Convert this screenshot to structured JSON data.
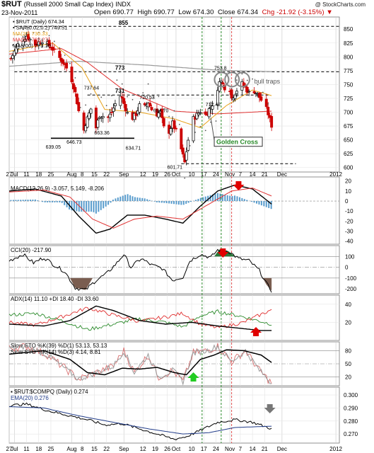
{
  "header": {
    "symbol": "$RUT",
    "name": "(Russell 2000 Small Cap Index)",
    "exchange": "INDX",
    "copyright": "@ StockCharts.com",
    "date": "23-Nov-2011",
    "open": "Open 690.77",
    "high": "High 690.77",
    "low": "Low 674.30",
    "close": "Close 674.34",
    "chg": "Chg -21.92 (-3.15%)"
  },
  "x_axis": {
    "ticks": [
      {
        "label": "27",
        "d": 0
      },
      {
        "label": "Jul",
        "d": 3,
        "month": true
      },
      {
        "label": "11",
        "d": 10
      },
      {
        "label": "18",
        "d": 17
      },
      {
        "label": "25",
        "d": 24
      },
      {
        "label": "Aug",
        "d": 36,
        "month": true
      },
      {
        "label": "8",
        "d": 42
      },
      {
        "label": "15",
        "d": 49
      },
      {
        "label": "22",
        "d": 56
      },
      {
        "label": "Sep",
        "d": 66,
        "month": true
      },
      {
        "label": "12",
        "d": 77
      },
      {
        "label": "19",
        "d": 84
      },
      {
        "label": "26",
        "d": 91
      },
      {
        "label": "Oct",
        "d": 96,
        "month": true
      },
      {
        "label": "10",
        "d": 105
      },
      {
        "label": "17",
        "d": 112
      },
      {
        "label": "24",
        "d": 119
      },
      {
        "label": "Nov",
        "d": 127,
        "month": true
      },
      {
        "label": "7",
        "d": 133
      },
      {
        "label": "14",
        "d": 140
      },
      {
        "label": "21",
        "d": 147
      },
      {
        "label": "Dec",
        "d": 157,
        "month": true
      },
      {
        "label": "2012",
        "d": 188,
        "month": true
      }
    ],
    "day_range": [
      0,
      190
    ]
  },
  "chart_data": [
    {
      "type": "candlestick",
      "panel": "price",
      "legend": [
        {
          "name": "▪ $RUT (Daily) 674.34",
          "color": "#000000"
        },
        {
          "name": "▪ SAR(0.02,0.2) 749.51",
          "color": "#000000"
        },
        {
          "name": "MA(20) 730.33",
          "color": "#e8a21a"
        },
        {
          "name": "MA(50) 702.27",
          "color": "#e03030"
        },
        {
          "name": "MA(200) 773.10",
          "color": "#000000"
        }
      ],
      "y_ticks": [
        "850",
        "825",
        "800",
        "775",
        "750",
        "725",
        "700",
        "675",
        "650",
        "625",
        "600"
      ],
      "ylim": [
        592,
        872
      ],
      "annotations": [
        "855",
        "773",
        "731",
        "737.64",
        "720.53",
        "694.70",
        "712.42",
        "753.8",
        "639.05",
        "646.73",
        "663.36",
        "634.71",
        "601.71",
        "bull traps",
        "Golden Cross"
      ],
      "levels": [
        855,
        773,
        731,
        653,
        607
      ],
      "closes": [
        {
          "d": 1,
          "v": 797
        },
        {
          "d": 5,
          "v": 822
        },
        {
          "d": 10,
          "v": 838
        },
        {
          "d": 15,
          "v": 822
        },
        {
          "d": 19,
          "v": 830
        },
        {
          "d": 24,
          "v": 818
        },
        {
          "d": 28,
          "v": 802
        },
        {
          "d": 31,
          "v": 790
        },
        {
          "d": 35,
          "v": 770
        },
        {
          "d": 38,
          "v": 735
        },
        {
          "d": 40,
          "v": 702
        },
        {
          "d": 42,
          "v": 655
        },
        {
          "d": 44,
          "v": 680
        },
        {
          "d": 47,
          "v": 706
        },
        {
          "d": 50,
          "v": 672
        },
        {
          "d": 52,
          "v": 695
        },
        {
          "d": 54,
          "v": 693
        },
        {
          "d": 56,
          "v": 685
        },
        {
          "d": 59,
          "v": 700
        },
        {
          "d": 61,
          "v": 715
        },
        {
          "d": 63,
          "v": 735
        },
        {
          "d": 65,
          "v": 724
        },
        {
          "d": 68,
          "v": 698
        },
        {
          "d": 70,
          "v": 686
        },
        {
          "d": 73,
          "v": 697
        },
        {
          "d": 75,
          "v": 712
        },
        {
          "d": 77,
          "v": 705
        },
        {
          "d": 80,
          "v": 718
        },
        {
          "d": 82,
          "v": 705
        },
        {
          "d": 84,
          "v": 695
        },
        {
          "d": 87,
          "v": 700
        },
        {
          "d": 89,
          "v": 672
        },
        {
          "d": 91,
          "v": 658
        },
        {
          "d": 94,
          "v": 680
        },
        {
          "d": 96,
          "v": 665
        },
        {
          "d": 98,
          "v": 645
        },
        {
          "d": 101,
          "v": 609
        },
        {
          "d": 103,
          "v": 650
        },
        {
          "d": 105,
          "v": 685
        },
        {
          "d": 108,
          "v": 695
        },
        {
          "d": 110,
          "v": 702
        },
        {
          "d": 112,
          "v": 690
        },
        {
          "d": 115,
          "v": 705
        },
        {
          "d": 117,
          "v": 715
        },
        {
          "d": 119,
          "v": 712
        },
        {
          "d": 121,
          "v": 760
        },
        {
          "d": 124,
          "v": 745
        },
        {
          "d": 126,
          "v": 758
        },
        {
          "d": 128,
          "v": 725
        },
        {
          "d": 131,
          "v": 740
        },
        {
          "d": 133,
          "v": 755
        },
        {
          "d": 136,
          "v": 744
        },
        {
          "d": 138,
          "v": 735
        },
        {
          "d": 140,
          "v": 742
        },
        {
          "d": 143,
          "v": 732
        },
        {
          "d": 145,
          "v": 722
        },
        {
          "d": 147,
          "v": 714
        },
        {
          "d": 149,
          "v": 697
        },
        {
          "d": 151,
          "v": 676
        }
      ]
    },
    {
      "type": "histogram+line",
      "panel": "MACD",
      "label": "MACD(12,26,9) -3.057, 5.149, -8.206",
      "y_ticks": [
        "20",
        "10",
        "0",
        "-10",
        "-20",
        "-30",
        "-40"
      ],
      "ylim": [
        -43,
        24
      ]
    },
    {
      "type": "line",
      "panel": "CCI",
      "label": "CCI(20) -217.90",
      "y_ticks": [
        "100",
        "0",
        "-100",
        "-200"
      ],
      "ylim": [
        -245,
        200
      ]
    },
    {
      "type": "line",
      "panel": "ADX",
      "label": "ADX(14) 11.10 +DI 18.40 -DI 33.60",
      "y_ticks": [
        "40",
        "20"
      ],
      "ylim": [
        0,
        50
      ]
    },
    {
      "type": "line",
      "panel": "STO",
      "label1": "Slow STO %K(39) %D(1) 53.13, 53.13",
      "label2": "Slow STO %K(14) %D(3) 4.14, 8.81",
      "y_ticks": [
        "80",
        "50",
        "20"
      ],
      "ylim": [
        0,
        100
      ]
    },
    {
      "type": "line",
      "panel": "ratio",
      "label1": "▪ $RUT:$COMPQ (Daily) 0.274",
      "label2": "EMA(20) 0.276",
      "y_ticks": [
        "0.300",
        "0.290",
        "0.280",
        "0.270"
      ],
      "ylim": [
        0.263,
        0.306
      ]
    }
  ],
  "colors": {
    "up": "#000000",
    "down": "#cc0000",
    "green_vline": "#2a8a2a",
    "red_vline": "#e05050",
    "arrow_red": "#e00000",
    "arrow_green": "#22cc22",
    "arrow_gray": "#777777",
    "hist": "#3b8bc4"
  }
}
